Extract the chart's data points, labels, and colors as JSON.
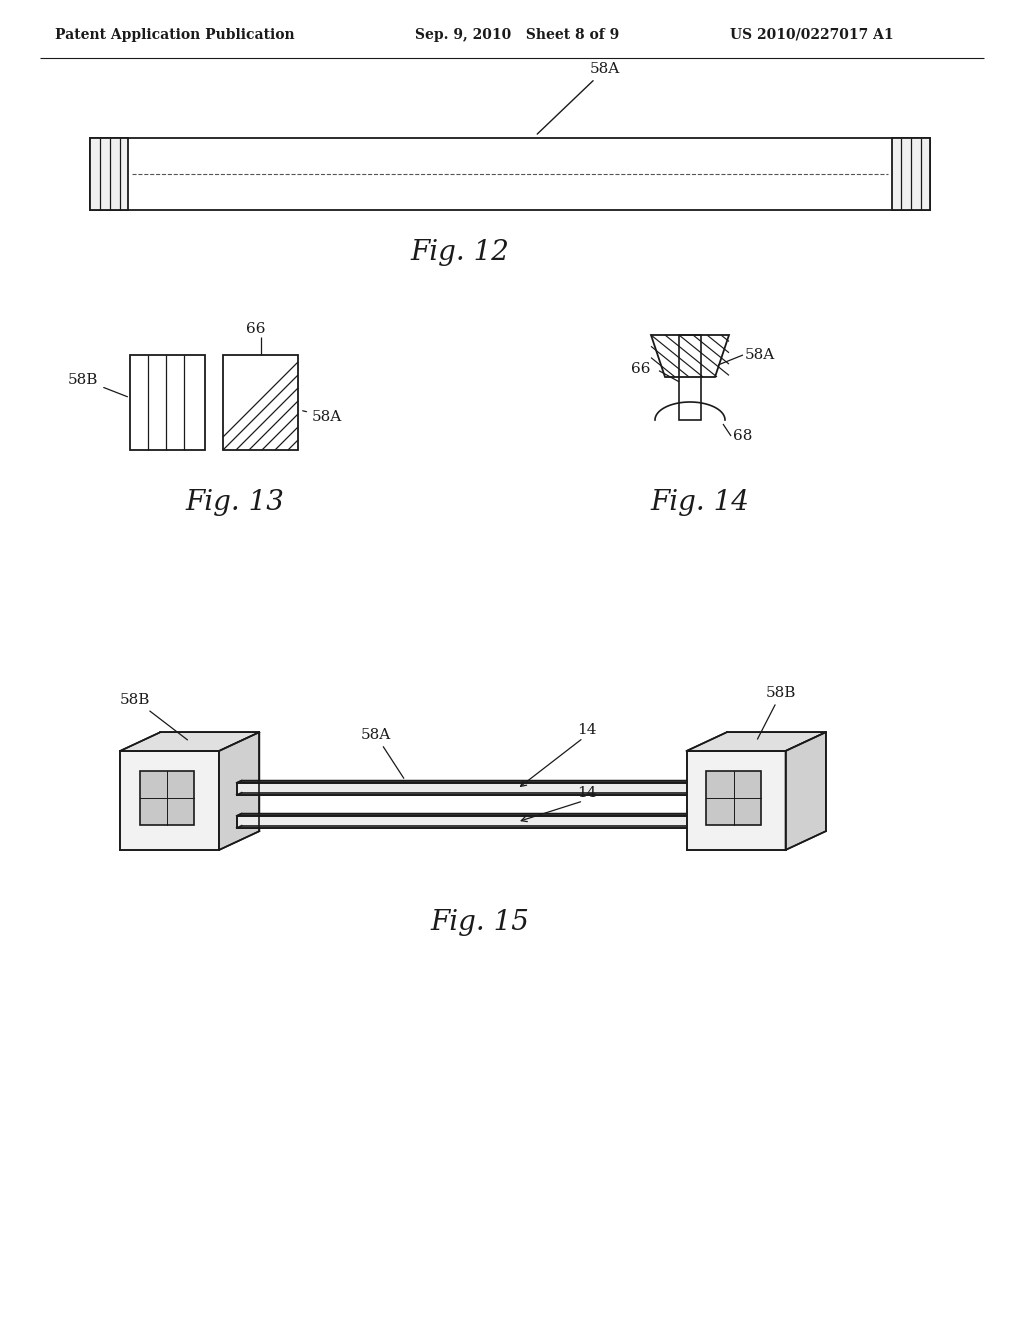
{
  "bg_color": "#ffffff",
  "text_color": "#1a1a1a",
  "header_left": "Patent Application Publication",
  "header_center": "Sep. 9, 2010   Sheet 8 of 9",
  "header_right": "US 2010/0227017 A1",
  "fig12_label": "Fig. 12",
  "fig13_label": "Fig. 13",
  "fig14_label": "Fig. 14",
  "fig15_label": "Fig. 15",
  "line_color": "#1a1a1a"
}
